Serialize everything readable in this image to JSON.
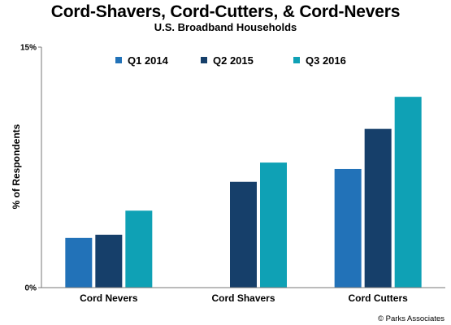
{
  "chart_data": {
    "type": "bar",
    "title": "Cord-Shavers, Cord-Cutters, & Cord-Nevers",
    "subtitle": "U.S. Broadband Households",
    "ylabel": "% of Respondents",
    "xlabel": "",
    "ylim": [
      0,
      15
    ],
    "yticks": [
      "0%",
      "15%"
    ],
    "categories": [
      "Cord Nevers",
      "Cord Shavers",
      "Cord Cutters"
    ],
    "series": [
      {
        "name": "Q1 2014",
        "color": "#2272B8",
        "values": [
          3.1,
          null,
          7.4
        ]
      },
      {
        "name": "Q2 2015",
        "color": "#163F6A",
        "values": [
          3.3,
          6.6,
          9.9
        ]
      },
      {
        "name": "Q3 2016",
        "color": "#0FA1B5",
        "values": [
          4.8,
          7.8,
          11.9
        ]
      }
    ],
    "legend": "top",
    "grid": false
  },
  "credit": "© Parks Associates"
}
